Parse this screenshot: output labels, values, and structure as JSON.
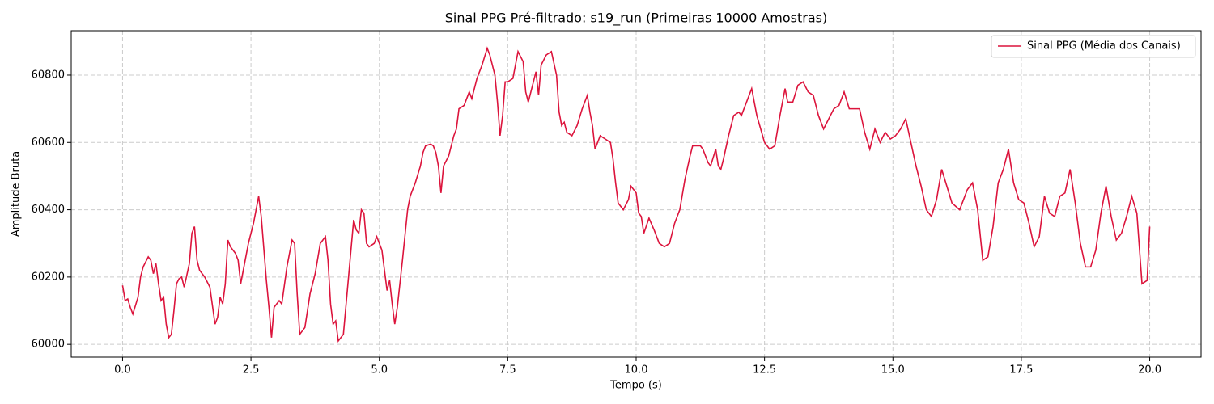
{
  "chart_data": {
    "type": "line",
    "title": "Sinal PPG Pré-filtrado: s19_run (Primeiras 10000 Amostras)",
    "x_label": "Tempo (s)",
    "y_label": "Amplitude Bruta",
    "x": [
      0.0,
      0.05,
      0.1,
      0.15,
      0.2,
      0.3,
      0.35,
      0.4,
      0.5,
      0.55,
      0.6,
      0.65,
      0.7,
      0.75,
      0.8,
      0.85,
      0.9,
      0.95,
      1.0,
      1.05,
      1.1,
      1.15,
      1.2,
      1.3,
      1.35,
      1.4,
      1.45,
      1.5,
      1.6,
      1.7,
      1.8,
      1.85,
      1.9,
      1.95,
      2.0,
      2.05,
      2.1,
      2.2,
      2.25,
      2.3,
      2.35,
      2.45,
      2.55,
      2.65,
      2.7,
      2.8,
      2.85,
      2.9,
      2.95,
      3.05,
      3.1,
      3.2,
      3.3,
      3.35,
      3.4,
      3.45,
      3.55,
      3.65,
      3.75,
      3.85,
      3.95,
      4.0,
      4.05,
      4.1,
      4.15,
      4.2,
      4.3,
      4.4,
      4.5,
      4.55,
      4.6,
      4.65,
      4.7,
      4.75,
      4.8,
      4.9,
      4.95,
      5.05,
      5.15,
      5.2,
      5.25,
      5.3,
      5.35,
      5.45,
      5.55,
      5.6,
      5.7,
      5.8,
      5.85,
      5.9,
      6.0,
      6.05,
      6.1,
      6.15,
      6.2,
      6.25,
      6.35,
      6.45,
      6.5,
      6.55,
      6.65,
      6.75,
      6.8,
      6.9,
      7.0,
      7.1,
      7.15,
      7.25,
      7.3,
      7.35,
      7.4,
      7.45,
      7.5,
      7.6,
      7.7,
      7.8,
      7.85,
      7.9,
      8.0,
      8.05,
      8.1,
      8.15,
      8.25,
      8.35,
      8.45,
      8.5,
      8.55,
      8.6,
      8.65,
      8.75,
      8.85,
      8.95,
      9.05,
      9.1,
      9.15,
      9.2,
      9.3,
      9.4,
      9.5,
      9.55,
      9.6,
      9.65,
      9.75,
      9.85,
      9.9,
      10.0,
      10.05,
      10.1,
      10.15,
      10.25,
      10.35,
      10.45,
      10.55,
      10.65,
      10.75,
      10.85,
      10.95,
      11.05,
      11.1,
      11.25,
      11.3,
      11.4,
      11.45,
      11.55,
      11.6,
      11.65,
      11.7,
      11.8,
      11.9,
      12.0,
      12.05,
      12.15,
      12.25,
      12.35,
      12.5,
      12.6,
      12.7,
      12.8,
      12.9,
      12.95,
      13.05,
      13.15,
      13.25,
      13.35,
      13.45,
      13.55,
      13.65,
      13.75,
      13.85,
      13.95,
      14.05,
      14.15,
      14.25,
      14.35,
      14.45,
      14.55,
      14.65,
      14.75,
      14.85,
      14.95,
      15.05,
      15.15,
      15.25,
      15.35,
      15.45,
      15.55,
      15.65,
      15.75,
      15.85,
      15.95,
      16.05,
      16.15,
      16.3,
      16.45,
      16.55,
      16.65,
      16.75,
      16.85,
      16.95,
      17.05,
      17.15,
      17.25,
      17.35,
      17.45,
      17.55,
      17.65,
      17.75,
      17.85,
      17.95,
      18.05,
      18.15,
      18.25,
      18.35,
      18.45,
      18.55,
      18.65,
      18.75,
      18.85,
      18.95,
      19.05,
      19.15,
      19.25,
      19.35,
      19.45,
      19.55,
      19.65,
      19.75,
      19.85,
      19.95,
      20.0
    ],
    "series": [
      {
        "name": "Sinal PPG (Média dos Canais)",
        "color": "#dc143c",
        "values": [
          60175,
          60130,
          60135,
          60110,
          60090,
          60140,
          60200,
          60230,
          60260,
          60250,
          60210,
          60240,
          60180,
          60130,
          60140,
          60060,
          60020,
          60030,
          60100,
          60180,
          60195,
          60200,
          60170,
          60240,
          60330,
          60350,
          60250,
          60220,
          60200,
          60170,
          60060,
          60080,
          60140,
          60120,
          60180,
          60310,
          60290,
          60270,
          60250,
          60180,
          60220,
          60300,
          60360,
          60440,
          60380,
          60190,
          60110,
          60020,
          60110,
          60130,
          60120,
          60230,
          60310,
          60300,
          60150,
          60030,
          60050,
          60150,
          60210,
          60300,
          60320,
          60250,
          60120,
          60060,
          60070,
          60010,
          60030,
          60200,
          60370,
          60340,
          60330,
          60400,
          60390,
          60300,
          60290,
          60300,
          60320,
          60280,
          60160,
          60190,
          60120,
          60060,
          60110,
          60250,
          60400,
          60440,
          60480,
          60530,
          60570,
          60590,
          60595,
          60590,
          60570,
          60530,
          60450,
          60530,
          60560,
          60620,
          60640,
          60700,
          60710,
          60750,
          60730,
          60790,
          60830,
          60880,
          60860,
          60800,
          60720,
          60620,
          60680,
          60780,
          60780,
          60790,
          60870,
          60840,
          60750,
          60720,
          60780,
          60810,
          60740,
          60830,
          60860,
          60870,
          60800,
          60690,
          60650,
          60660,
          60630,
          60620,
          60650,
          60700,
          60740,
          60690,
          60650,
          60580,
          60620,
          60610,
          60600,
          60550,
          60480,
          60420,
          60400,
          60430,
          60470,
          60450,
          60390,
          60380,
          60330,
          60375,
          60340,
          60300,
          60290,
          60300,
          60360,
          60400,
          60490,
          60560,
          60590,
          60590,
          60580,
          60540,
          60530,
          60580,
          60530,
          60520,
          60550,
          60620,
          60680,
          60690,
          60680,
          60720,
          60760,
          60680,
          60600,
          60580,
          60590,
          60680,
          60760,
          60720,
          60720,
          60770,
          60780,
          60750,
          60740,
          60680,
          60640,
          60670,
          60700,
          60710,
          60750,
          60700,
          60700,
          60700,
          60630,
          60580,
          60640,
          60600,
          60630,
          60610,
          60620,
          60640,
          60670,
          60600,
          60530,
          60470,
          60400,
          60380,
          60430,
          60520,
          60470,
          60420,
          60400,
          60460,
          60480,
          60400,
          60250,
          60260,
          60350,
          60480,
          60520,
          60580,
          60480,
          60430,
          60420,
          60360,
          60290,
          60320,
          60440,
          60390,
          60380,
          60440,
          60450,
          60520,
          60420,
          60300,
          60230,
          60230,
          60280,
          60390,
          60470,
          60380,
          60310,
          60330,
          60380,
          60440,
          60390,
          60180,
          60190,
          60350
        ]
      }
    ],
    "xlim": [
      -1,
      21
    ],
    "ylim": [
      59962,
      60932
    ],
    "xticks": [
      {
        "value": 0,
        "label": "0.0"
      },
      2.5,
      {
        "value": 5,
        "label": "5.0"
      },
      7.5,
      {
        "value": 10,
        "label": "10.0"
      },
      12.5,
      {
        "value": 15,
        "label": "15.0"
      },
      17.5,
      {
        "value": 20,
        "label": "20.0"
      }
    ],
    "yticks": [
      60000,
      60200,
      60400,
      60600,
      60800
    ],
    "grid": true,
    "legend": "upper right"
  }
}
